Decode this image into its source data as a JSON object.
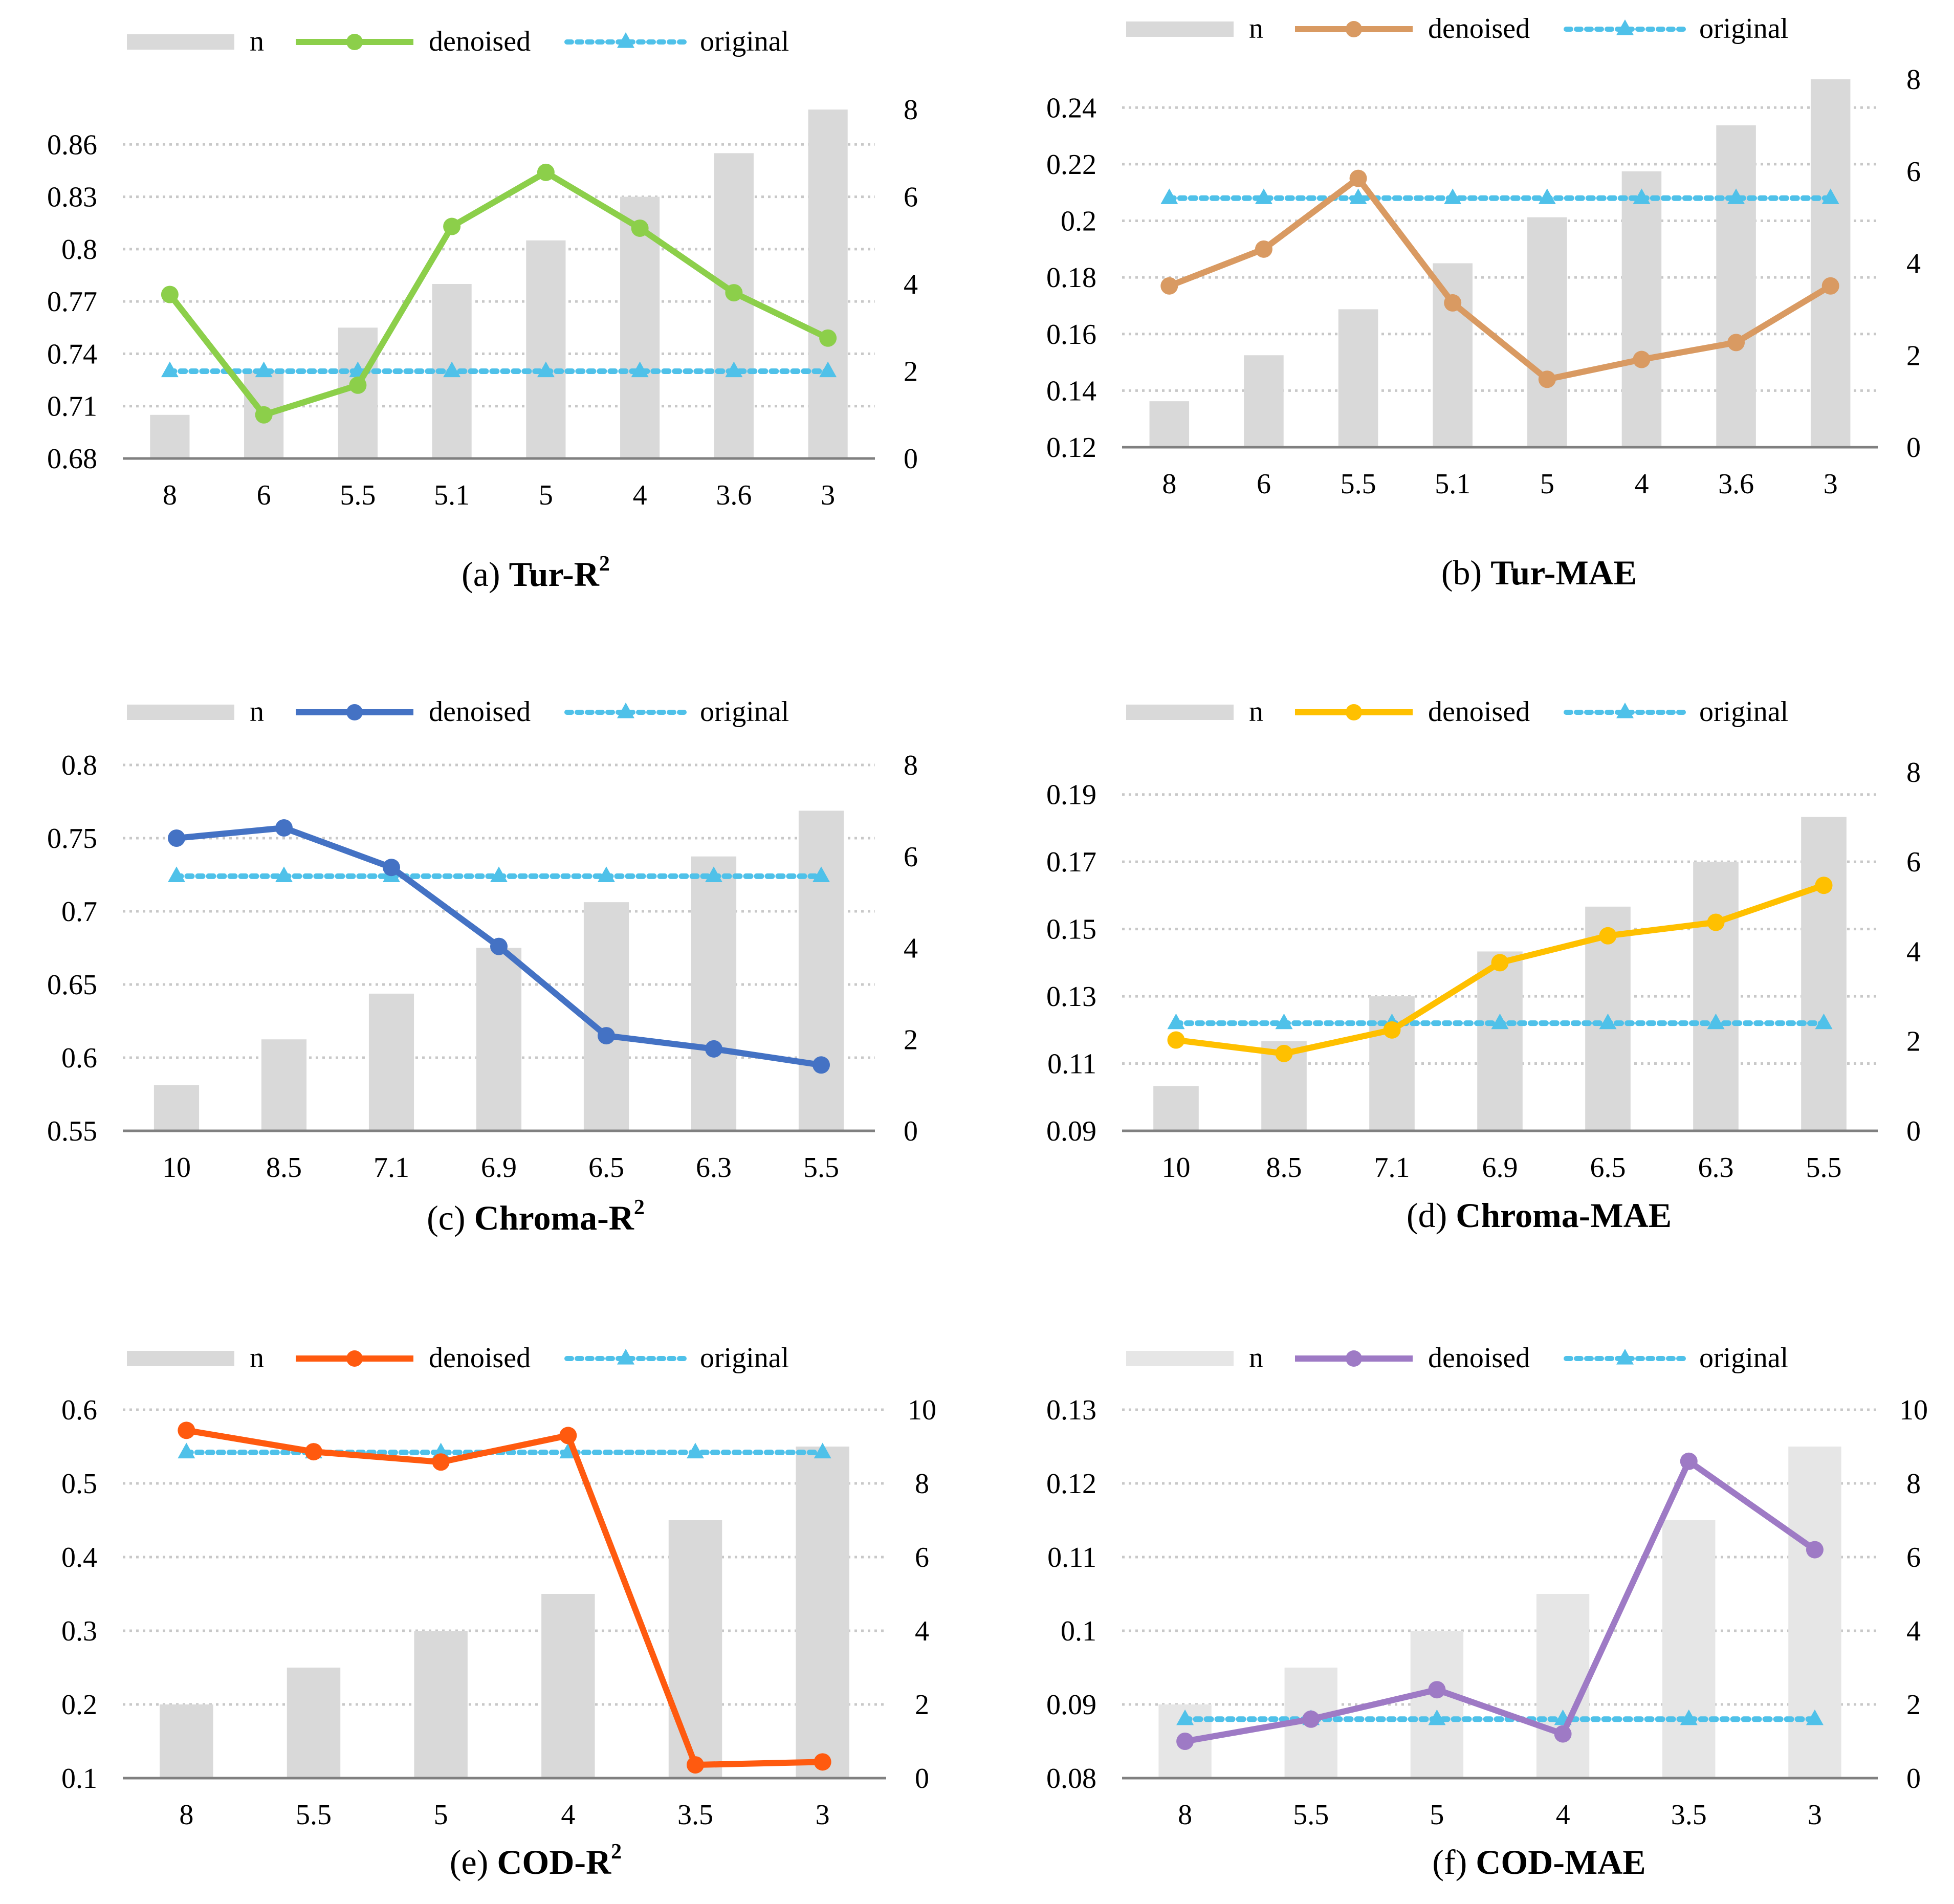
{
  "legend": {
    "n": "n",
    "denoised": "denoised",
    "original": "original"
  },
  "colors": {
    "bar": "#d9d9d9",
    "bar_light": "#e6e6e6",
    "grid": "#c8c8c8",
    "axis": "#808080",
    "text": "#000000",
    "original": "#4fc1e9",
    "green": "#8ccf4a",
    "tan": "#d99a62",
    "blue": "#4472c4",
    "gold": "#ffc000",
    "orange": "#ff5a0f",
    "purple": "#9e7ac5"
  },
  "chart_data": [
    {
      "id": "a",
      "type": "bar+line",
      "panel": "(a)",
      "title": "Tur-R",
      "sup": "2",
      "categories": [
        "8",
        "6",
        "5.5",
        "5.1",
        "5",
        "4",
        "3.6",
        "3"
      ],
      "bars": {
        "name": "n",
        "values": [
          1,
          2,
          3,
          4,
          5,
          6,
          7,
          8
        ]
      },
      "series": [
        {
          "name": "denoised",
          "values": [
            0.774,
            0.705,
            0.722,
            0.813,
            0.844,
            0.812,
            0.775,
            0.749
          ]
        },
        {
          "name": "original",
          "values": [
            0.73,
            0.73,
            0.73,
            0.73,
            0.73,
            0.73,
            0.73,
            0.73
          ]
        }
      ],
      "ylim": [
        0.68,
        0.89
      ],
      "yticks": [
        "0.68",
        "0.71",
        "0.74",
        "0.77",
        "0.8",
        "0.83",
        "0.86"
      ],
      "y2lim": [
        0,
        8.4
      ],
      "y2ticks": [
        "0",
        "2",
        "4",
        "6",
        "8"
      ],
      "line_color": "green",
      "bar_color": "bar"
    },
    {
      "id": "b",
      "type": "bar+line",
      "panel": "(b)",
      "title": "Tur-MAE",
      "sup": "",
      "categories": [
        "8",
        "6",
        "5.5",
        "5.1",
        "5",
        "4",
        "3.6",
        "3"
      ],
      "bars": {
        "name": "n",
        "values": [
          1,
          2,
          3,
          4,
          5,
          6,
          7,
          8
        ]
      },
      "series": [
        {
          "name": "denoised",
          "values": [
            0.177,
            0.19,
            0.215,
            0.171,
            0.144,
            0.151,
            0.157,
            0.177
          ]
        },
        {
          "name": "original",
          "values": [
            0.208,
            0.208,
            0.208,
            0.208,
            0.208,
            0.208,
            0.208,
            0.208
          ]
        }
      ],
      "ylim": [
        0.12,
        0.25
      ],
      "yticks": [
        "0.12",
        "0.14",
        "0.16",
        "0.18",
        "0.2",
        "0.22",
        "0.24"
      ],
      "y2lim": [
        0,
        8
      ],
      "y2ticks": [
        "0",
        "2",
        "4",
        "6",
        "8"
      ],
      "line_color": "tan",
      "bar_color": "bar"
    },
    {
      "id": "c",
      "type": "bar+line",
      "panel": "(c)",
      "title": "Chroma-R",
      "sup": "2",
      "categories": [
        "10",
        "8.5",
        "7.1",
        "6.9",
        "6.5",
        "6.3",
        "5.5"
      ],
      "bars": {
        "name": "n",
        "values": [
          1,
          2,
          3,
          4,
          5,
          6,
          7
        ]
      },
      "series": [
        {
          "name": "denoised",
          "values": [
            0.75,
            0.757,
            0.73,
            0.676,
            0.615,
            0.606,
            0.595
          ]
        },
        {
          "name": "original",
          "values": [
            0.724,
            0.724,
            0.724,
            0.724,
            0.724,
            0.724,
            0.724
          ]
        }
      ],
      "ylim": [
        0.55,
        0.8
      ],
      "yticks": [
        "0.55",
        "0.6",
        "0.65",
        "0.7",
        "0.75",
        "0.8"
      ],
      "y2lim": [
        0,
        8
      ],
      "y2ticks": [
        "0",
        "2",
        "4",
        "6",
        "8"
      ],
      "line_color": "blue",
      "bar_color": "bar"
    },
    {
      "id": "d",
      "type": "bar+line",
      "panel": "(d)",
      "title": "Chroma-MAE",
      "sup": "",
      "categories": [
        "10",
        "8.5",
        "7.1",
        "6.9",
        "6.5",
        "6.3",
        "5.5"
      ],
      "bars": {
        "name": "n",
        "values": [
          1,
          2,
          3,
          4,
          5,
          6,
          7
        ]
      },
      "series": [
        {
          "name": "denoised",
          "values": [
            0.117,
            0.113,
            0.12,
            0.14,
            0.148,
            0.152,
            0.163
          ]
        },
        {
          "name": "original",
          "values": [
            0.122,
            0.122,
            0.122,
            0.122,
            0.122,
            0.122,
            0.122
          ]
        }
      ],
      "ylim": [
        0.09,
        0.2
      ],
      "yticks": [
        "0.09",
        "0.11",
        "0.13",
        "0.15",
        "0.17",
        "0.19"
      ],
      "y2lim": [
        0,
        8.25
      ],
      "y2ticks": [
        "0",
        "2",
        "4",
        "6",
        "8"
      ],
      "line_color": "gold",
      "bar_color": "bar"
    },
    {
      "id": "e",
      "type": "bar+line",
      "panel": "(e)",
      "title": "COD-R",
      "sup": "2",
      "categories": [
        "8",
        "5.5",
        "5",
        "4",
        "3.5",
        "3"
      ],
      "bars": {
        "name": "n",
        "values": [
          2,
          3,
          4,
          5,
          7,
          9
        ]
      },
      "series": [
        {
          "name": "denoised",
          "values": [
            0.572,
            0.543,
            0.529,
            0.565,
            0.118,
            0.122
          ]
        },
        {
          "name": "original",
          "values": [
            0.542,
            0.542,
            0.542,
            0.542,
            0.542,
            0.542
          ]
        }
      ],
      "ylim": [
        0.1,
        0.6
      ],
      "yticks": [
        "0.1",
        "0.2",
        "0.3",
        "0.4",
        "0.5",
        "0.6"
      ],
      "y2lim": [
        0,
        10
      ],
      "y2ticks": [
        "0",
        "2",
        "4",
        "6",
        "8",
        "10"
      ],
      "line_color": "orange",
      "bar_color": "bar"
    },
    {
      "id": "f",
      "type": "bar+line",
      "panel": "(f)",
      "title": "COD-MAE",
      "sup": "",
      "categories": [
        "8",
        "5.5",
        "5",
        "4",
        "3.5",
        "3"
      ],
      "bars": {
        "name": "n",
        "values": [
          2,
          3,
          4,
          5,
          7,
          9
        ]
      },
      "series": [
        {
          "name": "denoised",
          "values": [
            0.085,
            0.088,
            0.092,
            0.086,
            0.123,
            0.111
          ]
        },
        {
          "name": "original",
          "values": [
            0.088,
            0.088,
            0.088,
            0.088,
            0.088,
            0.088
          ]
        }
      ],
      "ylim": [
        0.08,
        0.13
      ],
      "yticks": [
        "0.08",
        "0.09",
        "0.1",
        "0.11",
        "0.12",
        "0.13"
      ],
      "y2lim": [
        0,
        10
      ],
      "y2ticks": [
        "0",
        "2",
        "4",
        "6",
        "8",
        "10"
      ],
      "line_color": "purple",
      "bar_color": "bar_light"
    }
  ]
}
